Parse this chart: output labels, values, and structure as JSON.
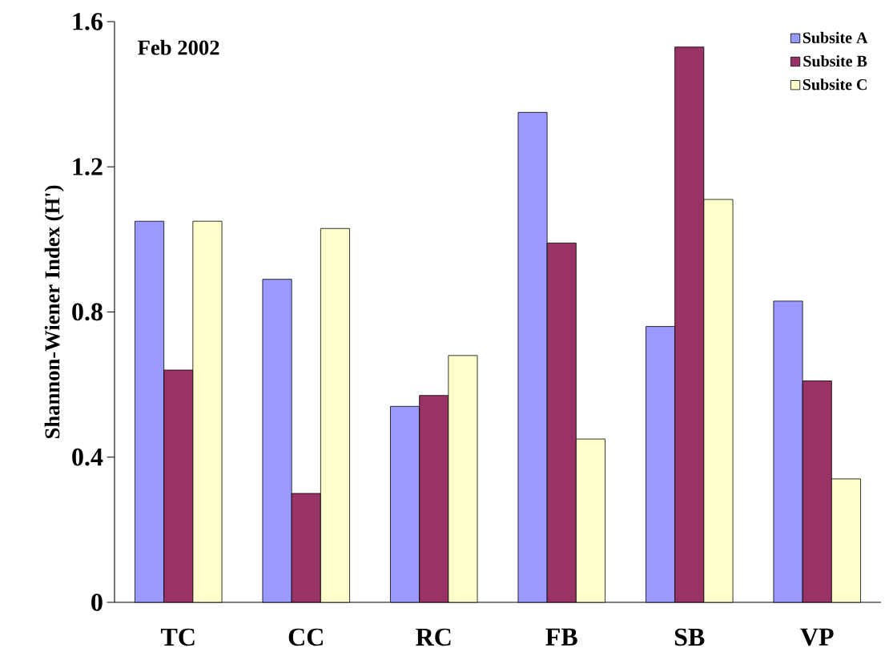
{
  "chart_data": {
    "type": "bar",
    "ylabel": "Shannon-Wiener Index (H')",
    "annotations": [
      "Feb 2002"
    ],
    "categories": [
      "TC",
      "CC",
      "RC",
      "FB",
      "SB",
      "VP"
    ],
    "series": [
      {
        "name": "Subsite A",
        "color": "#9999ff",
        "values": [
          1.05,
          0.89,
          0.54,
          1.35,
          0.76,
          0.83
        ]
      },
      {
        "name": "Subsite B",
        "color": "#993366",
        "values": [
          0.64,
          0.3,
          0.57,
          0.99,
          1.53,
          0.61
        ]
      },
      {
        "name": "Subsite C",
        "color": "#ffffcc",
        "values": [
          1.05,
          1.03,
          0.68,
          0.45,
          1.11,
          0.34
        ]
      }
    ],
    "ylim": [
      0,
      1.6
    ],
    "yticks": [
      0,
      0.4,
      0.8,
      1.2,
      1.6
    ],
    "legend": "top right"
  }
}
